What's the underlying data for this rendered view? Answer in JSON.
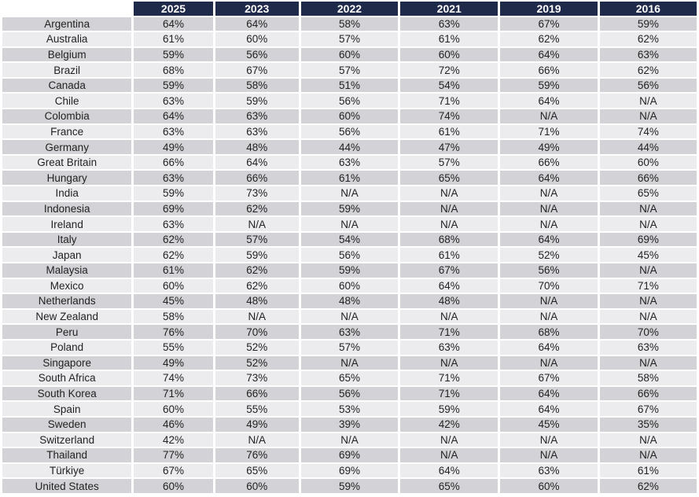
{
  "years": [
    "2025",
    "2023",
    "2022",
    "2021",
    "2019",
    "2016"
  ],
  "rows": [
    {
      "country": "Argentina",
      "values": [
        "64%",
        "64%",
        "58%",
        "63%",
        "67%",
        "59%"
      ]
    },
    {
      "country": "Australia",
      "values": [
        "61%",
        "60%",
        "57%",
        "61%",
        "62%",
        "62%"
      ]
    },
    {
      "country": "Belgium",
      "values": [
        "59%",
        "56%",
        "60%",
        "60%",
        "64%",
        "63%"
      ]
    },
    {
      "country": "Brazil",
      "values": [
        "68%",
        "67%",
        "57%",
        "72%",
        "66%",
        "62%"
      ]
    },
    {
      "country": "Canada",
      "values": [
        "59%",
        "58%",
        "51%",
        "54%",
        "59%",
        "56%"
      ]
    },
    {
      "country": "Chile",
      "values": [
        "63%",
        "59%",
        "56%",
        "71%",
        "64%",
        "N/A"
      ]
    },
    {
      "country": "Colombia",
      "values": [
        "64%",
        "63%",
        "60%",
        "74%",
        "N/A",
        "N/A"
      ]
    },
    {
      "country": "France",
      "values": [
        "63%",
        "63%",
        "56%",
        "61%",
        "71%",
        "74%"
      ]
    },
    {
      "country": "Germany",
      "values": [
        "49%",
        "48%",
        "44%",
        "47%",
        "49%",
        "44%"
      ]
    },
    {
      "country": "Great Britain",
      "values": [
        "66%",
        "64%",
        "63%",
        "57%",
        "66%",
        "60%"
      ]
    },
    {
      "country": "Hungary",
      "values": [
        "63%",
        "66%",
        "61%",
        "65%",
        "64%",
        "66%"
      ]
    },
    {
      "country": "India",
      "values": [
        "59%",
        "73%",
        "N/A",
        "N/A",
        "N/A",
        "65%"
      ]
    },
    {
      "country": "Indonesia",
      "values": [
        "69%",
        "62%",
        "59%",
        "N/A",
        "N/A",
        "N/A"
      ]
    },
    {
      "country": "Ireland",
      "values": [
        "63%",
        "N/A",
        "N/A",
        "N/A",
        "N/A",
        "N/A"
      ]
    },
    {
      "country": "Italy",
      "values": [
        "62%",
        "57%",
        "54%",
        "68%",
        "64%",
        "69%"
      ]
    },
    {
      "country": "Japan",
      "values": [
        "62%",
        "59%",
        "56%",
        "61%",
        "52%",
        "45%"
      ]
    },
    {
      "country": "Malaysia",
      "values": [
        "61%",
        "62%",
        "59%",
        "67%",
        "56%",
        "N/A"
      ]
    },
    {
      "country": "Mexico",
      "values": [
        "60%",
        "62%",
        "60%",
        "64%",
        "70%",
        "71%"
      ]
    },
    {
      "country": "Netherlands",
      "values": [
        "45%",
        "48%",
        "48%",
        "48%",
        "N/A",
        "N/A"
      ]
    },
    {
      "country": "New Zealand",
      "values": [
        "58%",
        "N/A",
        "N/A",
        "N/A",
        "N/A",
        "N/A"
      ]
    },
    {
      "country": "Peru",
      "values": [
        "76%",
        "70%",
        "63%",
        "71%",
        "68%",
        "70%"
      ]
    },
    {
      "country": "Poland",
      "values": [
        "55%",
        "52%",
        "57%",
        "63%",
        "64%",
        "63%"
      ]
    },
    {
      "country": "Singapore",
      "values": [
        "49%",
        "52%",
        "N/A",
        "N/A",
        "N/A",
        "N/A"
      ]
    },
    {
      "country": "South Africa",
      "values": [
        "74%",
        "73%",
        "65%",
        "71%",
        "67%",
        "58%"
      ]
    },
    {
      "country": "South Korea",
      "values": [
        "71%",
        "66%",
        "56%",
        "71%",
        "64%",
        "66%"
      ]
    },
    {
      "country": "Spain",
      "values": [
        "60%",
        "55%",
        "53%",
        "59%",
        "64%",
        "67%"
      ]
    },
    {
      "country": "Sweden",
      "values": [
        "46%",
        "49%",
        "39%",
        "42%",
        "45%",
        "35%"
      ]
    },
    {
      "country": "Switzerland",
      "values": [
        "42%",
        "N/A",
        "N/A",
        "N/A",
        "N/A",
        "N/A"
      ]
    },
    {
      "country": "Thailand",
      "values": [
        "77%",
        "76%",
        "69%",
        "N/A",
        "N/A",
        "N/A"
      ]
    },
    {
      "country": "Türkiye",
      "values": [
        "67%",
        "65%",
        "69%",
        "64%",
        "63%",
        "61%"
      ]
    },
    {
      "country": "United States",
      "values": [
        "60%",
        "60%",
        "59%",
        "65%",
        "60%",
        "62%"
      ]
    }
  ],
  "colors": {
    "header_bg": "#1f2a4a",
    "header_text": "#ffffff",
    "row_even": "#d3d3d7",
    "row_odd": "#ececef"
  }
}
